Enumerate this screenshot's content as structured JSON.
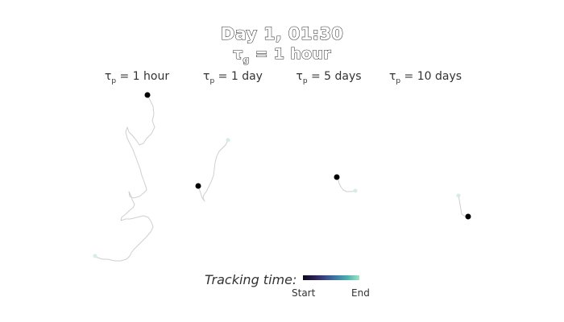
{
  "title": "Day 1, 01:30",
  "subtitle": {
    "symbol": "τ",
    "subscript": "g",
    "rest": " = 1 hour"
  },
  "panels": [
    {
      "symbol": "τ",
      "subscript": "p",
      "value": " = 1 hour"
    },
    {
      "symbol": "τ",
      "subscript": "p",
      "value": " = 1 day"
    },
    {
      "symbol": "τ",
      "subscript": "p",
      "value": " = 5 days"
    },
    {
      "symbol": "τ",
      "subscript": "p",
      "value": " = 10 days"
    }
  ],
  "legend": {
    "label": "Tracking time:",
    "start": "Start",
    "end": "End",
    "colormap": [
      "#0d0a1e",
      "#2c1f52",
      "#3b4a8a",
      "#3f7fa6",
      "#4fb2b0",
      "#9ee6c4"
    ]
  },
  "colors": {
    "track": "#cfcfcf",
    "track_start": "#d6ecea",
    "current_position": "#000000"
  }
}
